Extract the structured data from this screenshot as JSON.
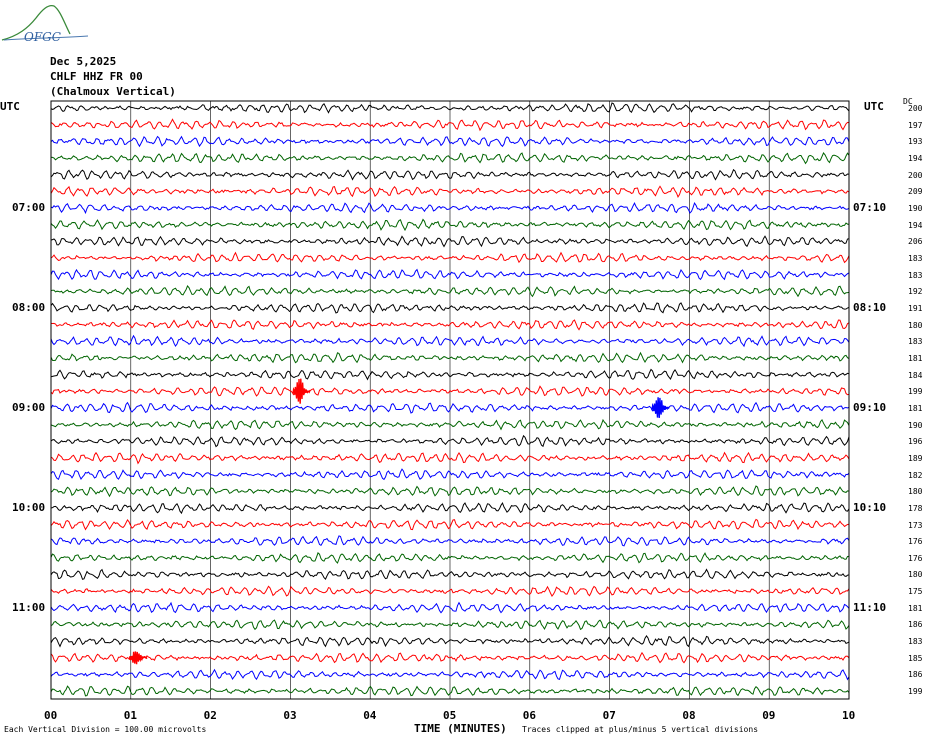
{
  "logo": {
    "text": "OFGC"
  },
  "header": {
    "date": "Dec 5,2025",
    "station": "CHLF HHZ FR 00",
    "location": "(Chalmoux Vertical)"
  },
  "labels": {
    "left_tz": "UTC",
    "right_tz": "UTC",
    "dc": "DC"
  },
  "chart_data": {
    "type": "line",
    "title": "",
    "xlabel": "TIME (MINUTES)",
    "ylabel": "",
    "xlim": [
      0,
      10
    ],
    "x_ticks": [
      "00",
      "01",
      "02",
      "03",
      "04",
      "05",
      "06",
      "07",
      "08",
      "09",
      "10"
    ],
    "grid": true,
    "trace_colors": [
      "#000000",
      "#ff0000",
      "#0000ff",
      "#006400"
    ],
    "trace_count": 36,
    "left_hour_labels": [
      {
        "row": 6,
        "text": "07:00"
      },
      {
        "row": 12,
        "text": "08:00"
      },
      {
        "row": 18,
        "text": "09:00"
      },
      {
        "row": 24,
        "text": "10:00"
      },
      {
        "row": 30,
        "text": "11:00"
      }
    ],
    "right_hour_labels": [
      {
        "row": 6,
        "text": "07:10"
      },
      {
        "row": 12,
        "text": "08:10"
      },
      {
        "row": 18,
        "text": "09:10"
      },
      {
        "row": 24,
        "text": "10:10"
      },
      {
        "row": 30,
        "text": "11:10"
      }
    ],
    "dc_offsets": [
      "200",
      "197",
      "193",
      "194",
      "200",
      "209",
      "190",
      "194",
      "206",
      "183",
      "183",
      "192",
      "191",
      "180",
      "183",
      "181",
      "184",
      "199",
      "181",
      "190",
      "196",
      "189",
      "182",
      "180",
      "178",
      "173",
      "176",
      "176",
      "180",
      "175",
      "181",
      "186",
      "183",
      "185",
      "186",
      "199"
    ],
    "events": [
      {
        "row": 17,
        "minute": 3.1,
        "amplitude": 2.4
      },
      {
        "row": 18,
        "minute": 7.6,
        "amplitude": 2.0
      },
      {
        "row": 33,
        "minute": 1.05,
        "amplitude": 1.3
      }
    ]
  },
  "footer": {
    "scale": "Each Vertical Division =  100.00 microvolts",
    "clip": "Traces clipped at plus/minus 5 vertical divisions"
  }
}
